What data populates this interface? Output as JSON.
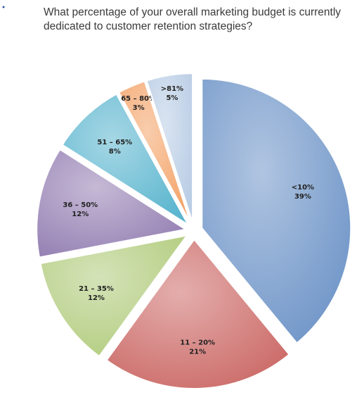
{
  "chart_data": {
    "type": "pie",
    "title": "What percentage of your overall marketing budget is currently dedicated to customer retention strategies?",
    "categories": [
      "<10%",
      "11 – 20%",
      "21 – 35%",
      "36 – 50%",
      "51 – 65%",
      "65 – 80%",
      ">81%"
    ],
    "values": [
      39,
      21,
      12,
      12,
      8,
      3,
      5
    ],
    "value_labels": [
      "39%",
      "21%",
      "12%",
      "12%",
      "8%",
      "3%",
      "5%"
    ],
    "colors": [
      "#6f95c8",
      "#cc6b68",
      "#b2cc7e",
      "#9580b3",
      "#5cb6cf",
      "#f4a46a",
      "#b9cde5"
    ]
  }
}
